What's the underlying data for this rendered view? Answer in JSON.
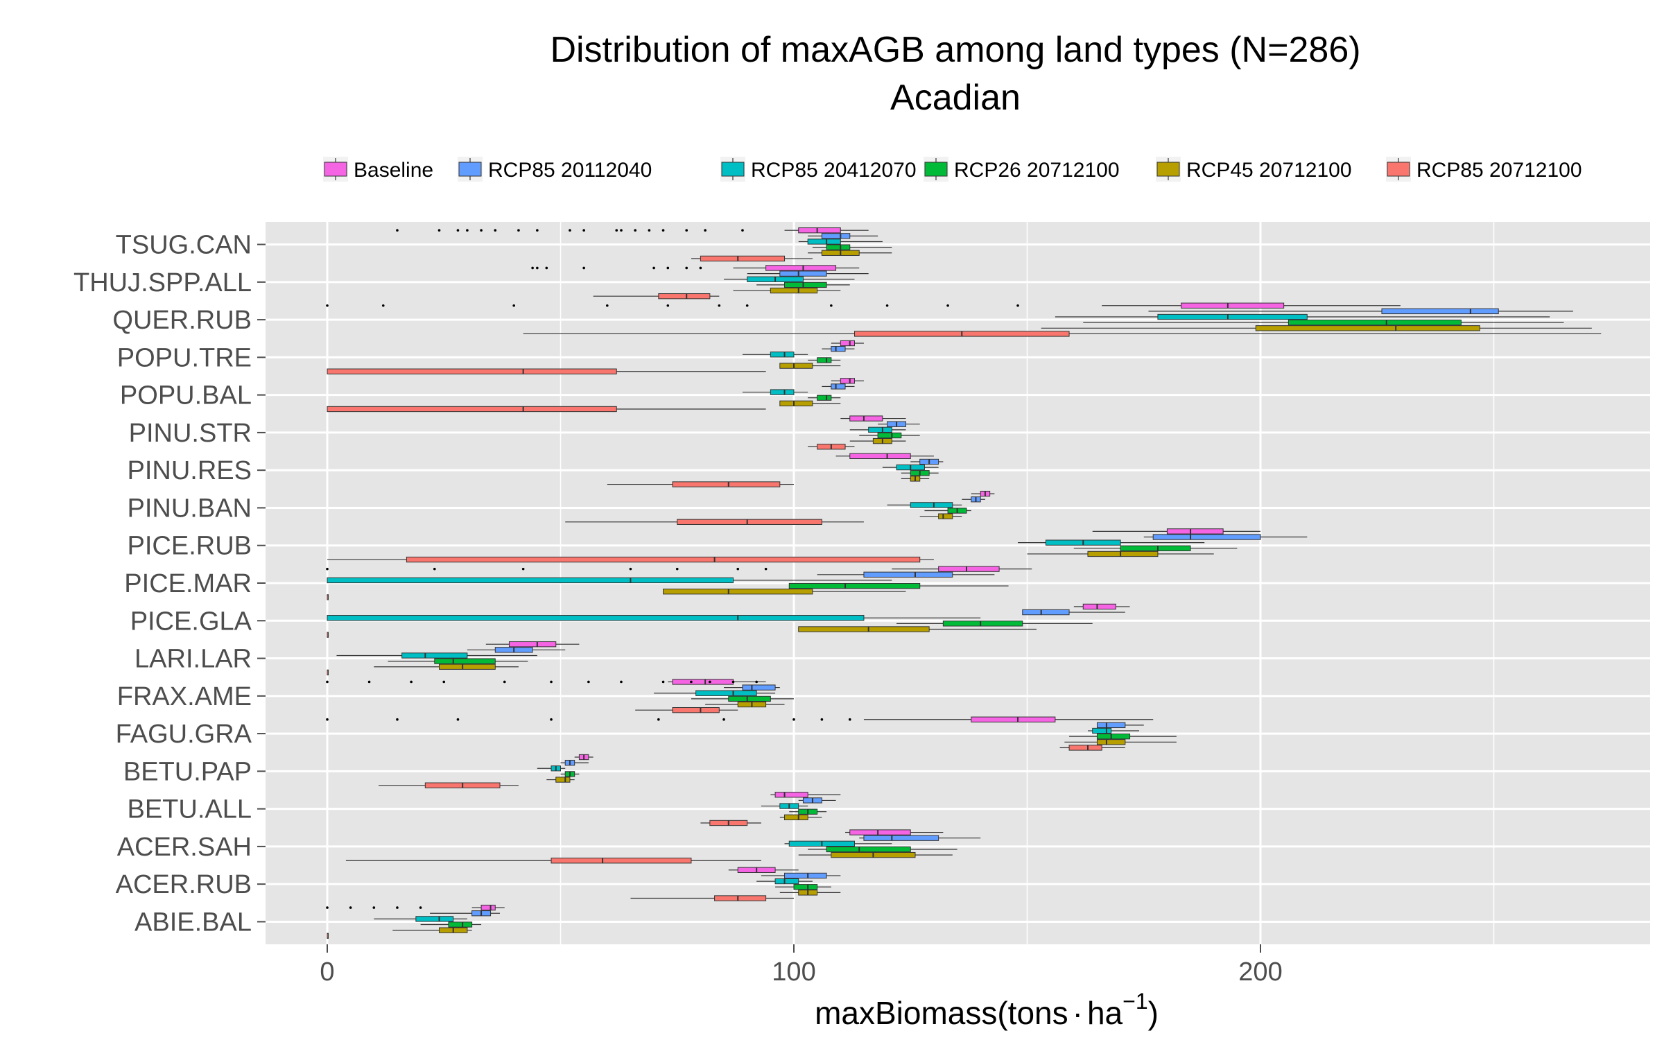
{
  "chart_data": {
    "type": "boxplot",
    "orientation": "horizontal",
    "title": "Distribution of maxAGB among land types (N=286)",
    "subtitle": "Acadian",
    "xlabel_main": "maxBiomass(tons",
    "xlabel_dot": "·",
    "xlabel_unit": "ha",
    "xlabel_sup": "−1",
    "xlabel_close": ")",
    "xlim": [
      -13,
      284
    ],
    "x_ticks": [
      0,
      100,
      200
    ],
    "x_tick_labels": [
      "0",
      "100",
      "200"
    ],
    "grid": true,
    "legend_position": "top",
    "colors": {
      "panel": "#e5e5e5",
      "grid": "#ffffff",
      "tick_text": "#4d4d4d",
      "whisker": "#333333"
    },
    "series": [
      {
        "name": "Baseline",
        "color": "#f564e3"
      },
      {
        "name": "RCP85 20112040",
        "color": "#619cff"
      },
      {
        "name": "RCP85 20412070",
        "color": "#00bfc4"
      },
      {
        "name": "RCP26 20712100",
        "color": "#00ba38"
      },
      {
        "name": "RCP45 20712100",
        "color": "#b79f00"
      },
      {
        "name": "RCP85 20712100",
        "color": "#f8766d"
      }
    ],
    "categories": [
      "TSUG.CAN",
      "THUJ.SPP.ALL",
      "QUER.RUB",
      "POPU.TRE",
      "POPU.BAL",
      "PINU.STR",
      "PINU.RES",
      "PINU.BAN",
      "PICE.RUB",
      "PICE.MAR",
      "PICE.GLA",
      "LARI.LAR",
      "FRAX.AME",
      "FAGU.GRA",
      "BETU.PAP",
      "BETU.ALL",
      "ACER.SAH",
      "ACER.RUB",
      "ABIE.BAL"
    ],
    "boxes": {
      "TSUG.CAN": [
        [
          98,
          101,
          105,
          110,
          116
        ],
        [
          103,
          106,
          110,
          112,
          118
        ],
        [
          101,
          103,
          107,
          110,
          119
        ],
        [
          104,
          107,
          110,
          112,
          121
        ],
        [
          103,
          106,
          110,
          114,
          121
        ],
        [
          78,
          80,
          88,
          98,
          104
        ]
      ],
      "THUJ.SPP.ALL": [
        [
          87,
          94,
          102,
          109,
          114
        ],
        [
          90,
          97,
          101,
          107,
          116
        ],
        [
          85,
          90,
          96,
          102,
          113
        ],
        [
          92,
          98,
          102,
          107,
          112
        ],
        [
          87,
          95,
          101,
          105,
          110
        ],
        [
          57,
          71,
          77,
          82,
          84
        ]
      ],
      "QUER.RUB": [
        [
          166,
          183,
          193,
          205,
          230
        ],
        [
          176,
          226,
          245,
          251,
          267
        ],
        [
          156,
          178,
          193,
          210,
          262
        ],
        [
          162,
          206,
          227,
          243,
          265
        ],
        [
          153,
          199,
          229,
          247,
          271
        ],
        [
          42,
          113,
          136,
          159,
          273
        ]
      ],
      "POPU.TRE": [
        [
          108,
          110,
          112,
          113,
          115
        ],
        [
          106,
          108,
          109,
          111,
          113
        ],
        [
          89,
          95,
          98,
          100,
          103
        ],
        [
          103,
          105,
          107,
          108,
          110
        ],
        [
          98,
          97,
          100,
          104,
          110
        ],
        [
          0,
          0,
          42,
          62,
          94
        ]
      ],
      "POPU.BAL": [
        [
          108,
          110,
          112,
          113,
          115
        ],
        [
          106,
          108,
          109,
          111,
          113
        ],
        [
          89,
          95,
          98,
          100,
          103
        ],
        [
          103,
          105,
          107,
          108,
          110
        ],
        [
          98,
          97,
          100,
          104,
          110
        ],
        [
          0,
          0,
          42,
          62,
          94
        ]
      ],
      "PINU.STR": [
        [
          110,
          112,
          115,
          119,
          124
        ],
        [
          118,
          120,
          122,
          124,
          127
        ],
        [
          112,
          116,
          119,
          121,
          124
        ],
        [
          114,
          118,
          121,
          123,
          127
        ],
        [
          112,
          117,
          119,
          121,
          124
        ],
        [
          103,
          105,
          108,
          111,
          113
        ]
      ],
      "PINU.RES": [
        [
          109,
          112,
          120,
          125,
          130
        ],
        [
          125,
          127,
          129,
          131,
          132
        ],
        [
          119,
          122,
          125,
          128,
          131
        ],
        [
          123,
          125,
          127,
          129,
          131
        ],
        [
          123,
          125,
          126,
          127,
          129
        ],
        [
          60,
          74,
          86,
          97,
          100
        ]
      ],
      "PINU.BAN": [
        [
          138,
          140,
          141,
          142,
          143
        ],
        [
          136,
          138,
          139,
          140,
          141
        ],
        [
          120,
          125,
          130,
          134,
          136
        ],
        [
          128,
          133,
          135,
          137,
          138
        ],
        [
          127,
          131,
          132,
          134,
          136
        ],
        [
          51,
          75,
          90,
          106,
          115
        ]
      ],
      "PICE.RUB": [
        [
          164,
          180,
          185,
          192,
          200
        ],
        [
          175,
          177,
          185,
          200,
          210
        ],
        [
          148,
          154,
          162,
          170,
          188
        ],
        [
          160,
          170,
          178,
          185,
          195
        ],
        [
          150,
          163,
          170,
          178,
          190
        ],
        [
          0,
          17,
          83,
          127,
          130
        ]
      ],
      "PICE.MAR": [
        [
          121,
          131,
          137,
          144,
          151
        ],
        [
          105,
          115,
          126,
          134,
          143
        ],
        [
          0,
          0,
          65,
          87,
          121
        ],
        [
          105,
          99,
          111,
          127,
          146
        ],
        [
          102,
          72,
          86,
          104,
          124
        ],
        [
          0,
          0,
          null,
          0,
          0
        ]
      ],
      "PICE.GLA": [
        [
          160,
          162,
          165,
          169,
          172
        ],
        [
          157,
          149,
          153,
          159,
          171
        ],
        [
          0,
          0,
          88,
          115,
          140
        ],
        [
          122,
          132,
          140,
          149,
          164
        ],
        [
          101,
          101,
          116,
          129,
          152
        ],
        [
          0,
          0,
          null,
          0,
          0
        ]
      ],
      "LARI.LAR": [
        [
          34,
          39,
          45,
          49,
          54
        ],
        [
          30,
          36,
          40,
          44,
          51
        ],
        [
          2,
          16,
          21,
          30,
          45
        ],
        [
          13,
          23,
          27,
          36,
          43
        ],
        [
          10,
          24,
          29,
          36,
          41
        ],
        [
          0,
          0,
          null,
          0,
          0
        ]
      ],
      "FRAX.AME": [
        [
          73,
          74,
          81,
          87,
          94
        ],
        [
          85,
          89,
          91,
          96,
          97
        ],
        [
          70,
          79,
          87,
          92,
          96
        ],
        [
          78,
          86,
          90,
          95,
          100
        ],
        [
          81,
          88,
          91,
          94,
          98
        ],
        [
          66,
          74,
          80,
          84,
          88
        ]
      ],
      "FAGU.GRA": [
        [
          115,
          138,
          148,
          156,
          177
        ],
        [
          165,
          165,
          167,
          171,
          175
        ],
        [
          163,
          164,
          167,
          168,
          174
        ],
        [
          159,
          165,
          168,
          172,
          182
        ],
        [
          158,
          165,
          167,
          171,
          182
        ],
        [
          157,
          159,
          163,
          166,
          171
        ]
      ],
      "BETU.PAP": [
        [
          53,
          54,
          55,
          56,
          57
        ],
        [
          50,
          51,
          52,
          53,
          56
        ],
        [
          45,
          48,
          49,
          50,
          51
        ],
        [
          50,
          51,
          52,
          53,
          54
        ],
        [
          47,
          49,
          51,
          52,
          53
        ],
        [
          11,
          21,
          29,
          37,
          41
        ]
      ],
      "BETU.ALL": [
        [
          95,
          96,
          98,
          103,
          110
        ],
        [
          101,
          102,
          104,
          106,
          109
        ],
        [
          93,
          97,
          99,
          101,
          103
        ],
        [
          99,
          101,
          103,
          105,
          107
        ],
        [
          97,
          98,
          101,
          103,
          106
        ],
        [
          80,
          82,
          86,
          90,
          93
        ]
      ],
      "ACER.SAH": [
        [
          111,
          112,
          118,
          125,
          132
        ],
        [
          114,
          115,
          121,
          131,
          140
        ],
        [
          98,
          99,
          106,
          113,
          121
        ],
        [
          103,
          107,
          114,
          125,
          135
        ],
        [
          101,
          108,
          117,
          126,
          134
        ],
        [
          4,
          48,
          59,
          78,
          93
        ]
      ],
      "ACER.RUB": [
        [
          86,
          88,
          92,
          96,
          101
        ],
        [
          93,
          98,
          103,
          107,
          110
        ],
        [
          92,
          96,
          98,
          101,
          104
        ],
        [
          96,
          100,
          103,
          105,
          108
        ],
        [
          97,
          101,
          103,
          105,
          110
        ],
        [
          65,
          83,
          88,
          94,
          100
        ]
      ],
      "ABIE.BAL": [
        [
          31,
          33,
          35,
          36,
          38
        ],
        [
          22,
          31,
          33,
          35,
          37
        ],
        [
          10,
          19,
          24,
          27,
          30
        ],
        [
          20,
          26,
          29,
          31,
          33
        ],
        [
          14,
          24,
          27,
          30,
          31
        ],
        [
          0,
          0,
          null,
          0,
          0
        ]
      ]
    },
    "outliers": {
      "TSUG.CAN": [
        [
          15,
          24,
          28,
          30,
          33,
          36,
          41,
          45,
          52,
          55,
          62,
          63,
          66,
          69,
          72,
          77,
          81,
          89
        ]
      ],
      "THUJ.SPP.ALL": [
        [
          45,
          44,
          47,
          55,
          70,
          73,
          77,
          80
        ]
      ],
      "QUER.RUB": [
        [
          0,
          12,
          40,
          60,
          73,
          84,
          90,
          108,
          120,
          133,
          148
        ]
      ],
      "PICE.MAR": [
        [
          0,
          23,
          42,
          65,
          75,
          88,
          94
        ]
      ],
      "FAGU.GRA": [
        [
          0,
          15,
          28,
          48,
          71,
          85,
          100,
          106,
          112
        ]
      ],
      "FRAX.AME": [
        [
          0,
          9,
          18,
          25,
          38,
          48,
          56,
          63,
          72,
          78,
          82,
          87,
          92
        ]
      ],
      "ABIE.BAL": [
        [
          0,
          5,
          10,
          15,
          20
        ]
      ]
    }
  }
}
